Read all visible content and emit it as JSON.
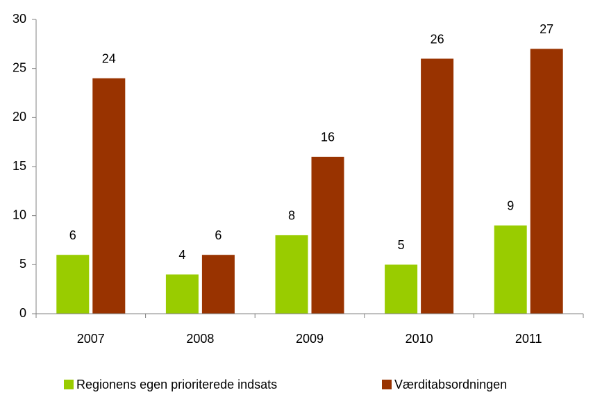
{
  "chart_data": {
    "type": "bar",
    "categories": [
      "2007",
      "2008",
      "2009",
      "2010",
      "2011"
    ],
    "series": [
      {
        "name": "Regionens egen prioriterede indsats",
        "color": "#99cc00",
        "values": [
          6,
          4,
          8,
          5,
          9
        ]
      },
      {
        "name": "Værditabsordningen",
        "color": "#993300",
        "values": [
          24,
          6,
          16,
          26,
          27
        ]
      }
    ],
    "ylim": [
      0,
      30
    ],
    "yticks": [
      0,
      5,
      10,
      15,
      20,
      25,
      30
    ],
    "grid": false,
    "legend": "bottom"
  }
}
